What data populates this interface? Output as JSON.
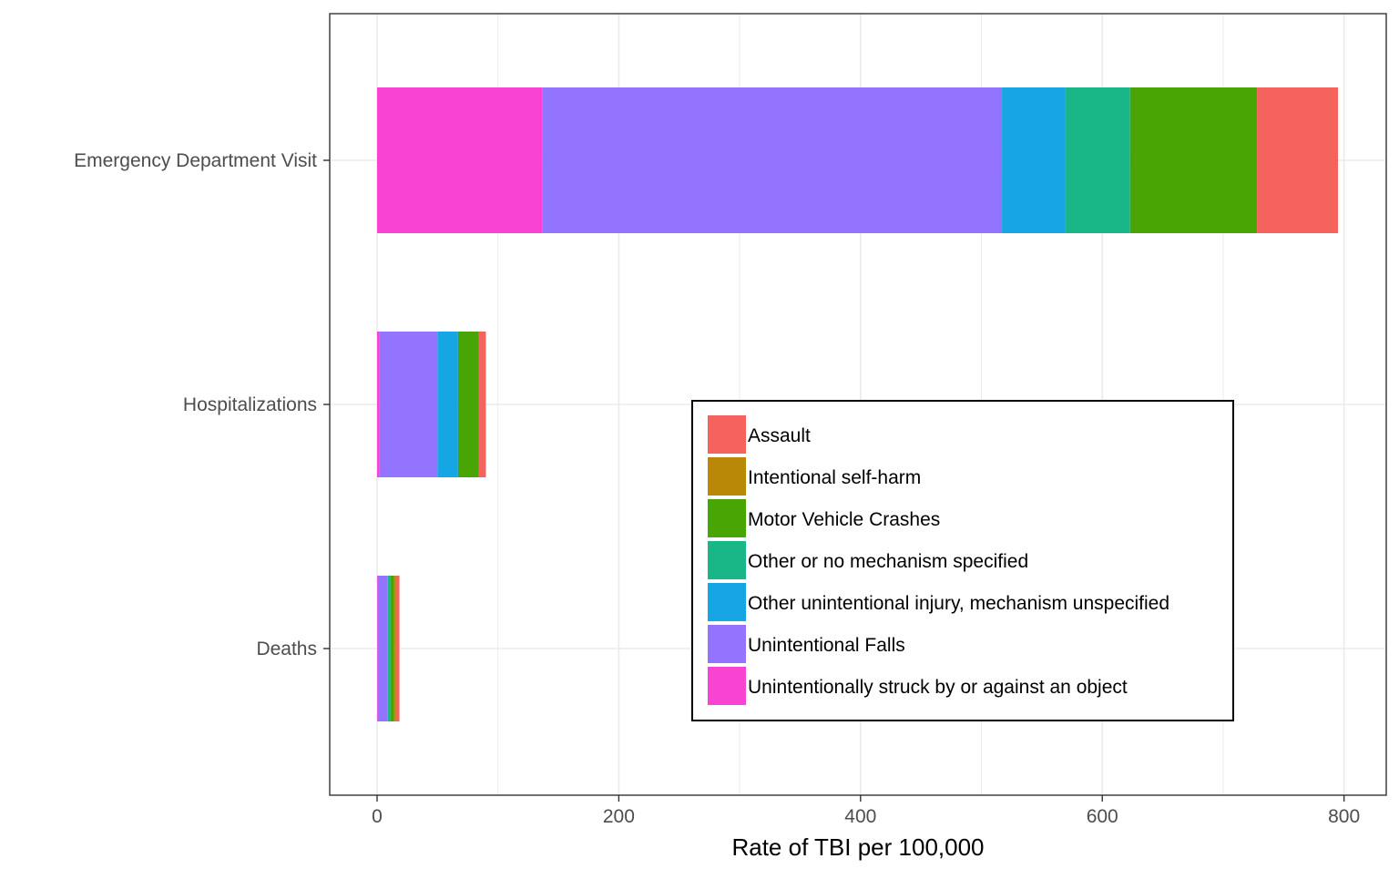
{
  "chart_data": {
    "type": "bar",
    "orientation": "horizontal",
    "stacked": true,
    "categories": [
      "Emergency Department Visit",
      "Hospitalizations",
      "Deaths"
    ],
    "xlabel": "Rate of TBI per 100,000",
    "ylabel": "",
    "title": "",
    "xlim": [
      -40,
      820
    ],
    "xticks": [
      0,
      200,
      400,
      600,
      800
    ],
    "grid": true,
    "legend_position": "inside-bottom-right",
    "series": [
      {
        "name": "Unintentionally struck by or against an object",
        "color": "#F943D2",
        "values": [
          137,
          2,
          0.5
        ]
      },
      {
        "name": "Unintentional Falls",
        "color": "#9374FF",
        "values": [
          380,
          48,
          8
        ]
      },
      {
        "name": "Other unintentional injury, mechanism unspecified",
        "color": "#17A6E5",
        "values": [
          52,
          17,
          0.5
        ]
      },
      {
        "name": "Other or no mechanism specified",
        "color": "#19B788",
        "values": [
          54,
          0,
          2
        ]
      },
      {
        "name": "Motor Vehicle Crashes",
        "color": "#49A504",
        "values": [
          105,
          17,
          3
        ]
      },
      {
        "name": "Intentional self-harm",
        "color": "#B98806",
        "values": [
          0,
          0,
          1.5
        ]
      },
      {
        "name": "Assault",
        "color": "#F6625D",
        "values": [
          67,
          6,
          3
        ]
      }
    ],
    "legend_order": [
      "Assault",
      "Intentional self-harm",
      "Motor Vehicle Crashes",
      "Other or no mechanism specified",
      "Other unintentional injury, mechanism unspecified",
      "Unintentional Falls",
      "Unintentionally struck by or against an object"
    ]
  }
}
